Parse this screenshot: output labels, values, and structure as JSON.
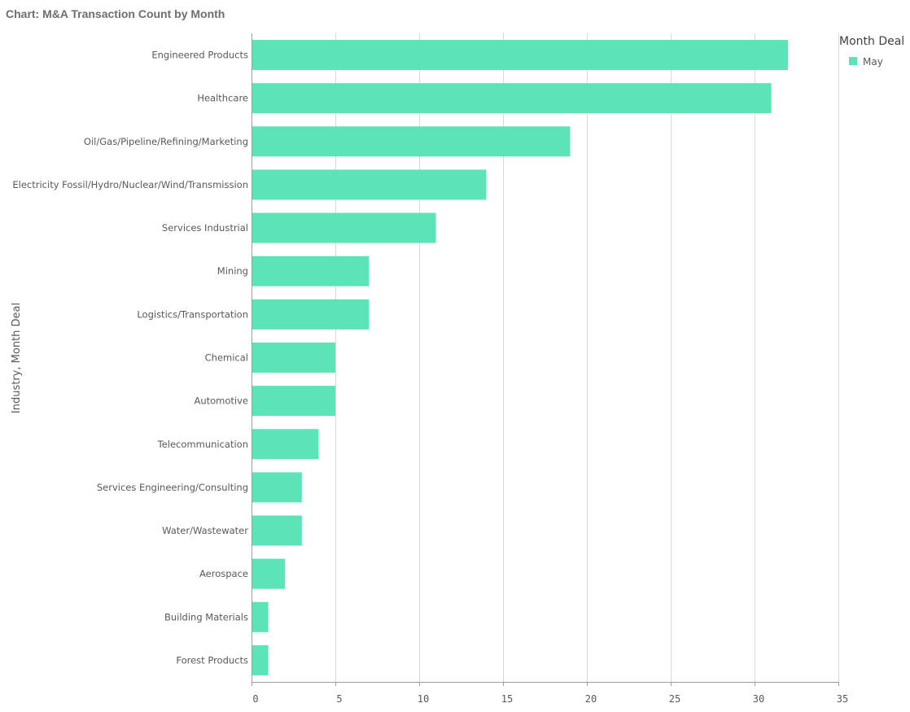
{
  "chart_data": {
    "type": "bar",
    "orientation": "horizontal",
    "title": "Chart: M&A Transaction Count by Month",
    "xlabel": "",
    "ylabel": "Industry, Month Deal",
    "xlim": [
      0,
      35
    ],
    "ticks": [
      "0",
      "5",
      "10",
      "15",
      "20",
      "25",
      "30",
      "35"
    ],
    "tick_values": [
      0,
      5,
      10,
      15,
      20,
      25,
      30,
      35
    ],
    "grid": true,
    "legend": {
      "title": "Month Deal",
      "placement": "top-right",
      "entries": [
        "May"
      ]
    },
    "categories": [
      "Engineered Products",
      "Healthcare",
      "Oil/Gas/Pipeline/Refining/Marketing",
      "Electricity Fossil/Hydro/Nuclear/Wind/Transmission",
      "Services Industrial",
      "Mining",
      "Logistics/Transportation",
      "Chemical",
      "Automotive",
      "Telecommunication",
      "Services Engineering/Consulting",
      "Water/Wastewater",
      "Aerospace",
      "Building Materials",
      "Forest Products"
    ],
    "series": [
      {
        "name": "May",
        "color": "#5ce3b8",
        "values": [
          32,
          31,
          19,
          14,
          11,
          7,
          7,
          5,
          5,
          4,
          3,
          3,
          2,
          1,
          1
        ]
      }
    ]
  },
  "colors": {
    "bar": "#5ce3b8",
    "grid": "#d9d9d9",
    "axis": "#9e9e9e",
    "text": "#595959",
    "title": "#6e6e6e"
  }
}
